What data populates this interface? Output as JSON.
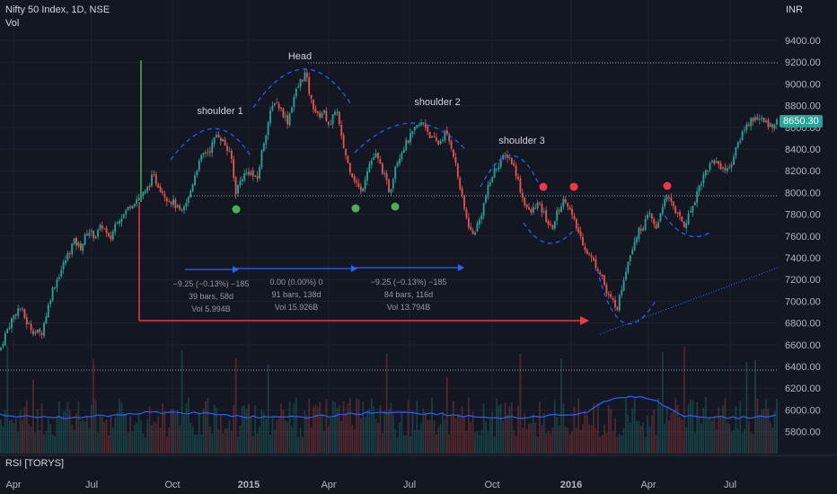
{
  "header": {
    "symbol": "Nifty 50 Index, 1D, NSE",
    "vol_label": "Vol",
    "currency": "INR",
    "rsi_label": "RSI [TORYS]"
  },
  "colors": {
    "background": "#131722",
    "up": "#26a69a",
    "down": "#ef5350",
    "wave": "#2962ff",
    "markerRed": "#f23645",
    "markerGreen": "#4caf50",
    "vLine": "#4caf50",
    "hArrow": "#f23645",
    "volLine": "#2962ff"
  },
  "price_tag": "8650.30",
  "annotations": {
    "head": "Head",
    "shoulder1": "shoulder 1",
    "shoulder2": "shoulder 2",
    "shoulder3": "shoulder 3",
    "m1_line1": "−9.25 (−0.13%) −185",
    "m1_line2": "39 bars, 58d",
    "m1_line3": "Vol 5.994B",
    "m2_line1": "0.00 (0.00%) 0",
    "m2_line2": "91 bars, 138d",
    "m2_line3": "Vol 15.926B",
    "m3_line1": "−9.25 (−0.13%) −185",
    "m3_line2": "84 bars, 116d",
    "m3_line3": "Vol 13.794B"
  },
  "chart_data": {
    "type": "candlestick",
    "y_axis_ticks": [
      "9400.00",
      "9200.00",
      "9000.00",
      "8800.00",
      "8600.00",
      "8400.00",
      "8200.00",
      "8000.00",
      "7800.00",
      "7600.00",
      "7400.00",
      "7200.00",
      "7000.00",
      "6800.00",
      "6600.00",
      "6400.00",
      "6200.00",
      "6000.00",
      "5800.00"
    ],
    "x_axis_ticks": [
      "Apr",
      "Jul",
      "Oct",
      "2015",
      "Apr",
      "Jul",
      "Oct",
      "2016",
      "Apr",
      "Jul"
    ],
    "ylim": [
      5700,
      9550
    ],
    "key_levels": {
      "neckline": 7980,
      "head_high": 9200,
      "support": 6380
    },
    "path": [
      [
        0,
        6550
      ],
      [
        6,
        6700
      ],
      [
        14,
        6850
      ],
      [
        22,
        6950
      ],
      [
        30,
        6800
      ],
      [
        38,
        6720
      ],
      [
        46,
        6700
      ],
      [
        52,
        6900
      ],
      [
        58,
        7100
      ],
      [
        66,
        7250
      ],
      [
        74,
        7400
      ],
      [
        82,
        7550
      ],
      [
        90,
        7500
      ],
      [
        98,
        7650
      ],
      [
        106,
        7600
      ],
      [
        114,
        7700
      ],
      [
        122,
        7550
      ],
      [
        130,
        7750
      ],
      [
        138,
        7800
      ],
      [
        146,
        7900
      ],
      [
        154,
        7950
      ],
      [
        162,
        8000
      ],
      [
        170,
        8150
      ],
      [
        178,
        8050
      ],
      [
        186,
        7950
      ],
      [
        194,
        7900
      ],
      [
        202,
        7800
      ],
      [
        210,
        7950
      ],
      [
        218,
        8200
      ],
      [
        226,
        8350
      ],
      [
        234,
        8400
      ],
      [
        242,
        8550
      ],
      [
        250,
        8450
      ],
      [
        258,
        8300
      ],
      [
        262,
        8000
      ],
      [
        270,
        8150
      ],
      [
        278,
        8200
      ],
      [
        286,
        8100
      ],
      [
        292,
        8400
      ],
      [
        300,
        8700
      ],
      [
        306,
        8850
      ],
      [
        314,
        8750
      ],
      [
        320,
        8650
      ],
      [
        328,
        8900
      ],
      [
        336,
        9050
      ],
      [
        340,
        9100
      ],
      [
        346,
        8850
      ],
      [
        354,
        8700
      ],
      [
        360,
        8750
      ],
      [
        368,
        8600
      ],
      [
        374,
        8800
      ],
      [
        380,
        8500
      ],
      [
        388,
        8250
      ],
      [
        396,
        8100
      ],
      [
        402,
        8000
      ],
      [
        410,
        8250
      ],
      [
        418,
        8350
      ],
      [
        426,
        8200
      ],
      [
        434,
        8000
      ],
      [
        440,
        8250
      ],
      [
        448,
        8400
      ],
      [
        456,
        8500
      ],
      [
        464,
        8600
      ],
      [
        472,
        8650
      ],
      [
        480,
        8500
      ],
      [
        488,
        8450
      ],
      [
        496,
        8550
      ],
      [
        504,
        8400
      ],
      [
        512,
        8050
      ],
      [
        518,
        7800
      ],
      [
        526,
        7600
      ],
      [
        534,
        7750
      ],
      [
        542,
        8000
      ],
      [
        550,
        8200
      ],
      [
        558,
        8300
      ],
      [
        566,
        8350
      ],
      [
        574,
        8200
      ],
      [
        582,
        7950
      ],
      [
        590,
        7800
      ],
      [
        598,
        7900
      ],
      [
        606,
        7800
      ],
      [
        614,
        7650
      ],
      [
        622,
        7850
      ],
      [
        630,
        7950
      ],
      [
        638,
        7750
      ],
      [
        646,
        7600
      ],
      [
        654,
        7450
      ],
      [
        662,
        7350
      ],
      [
        670,
        7250
      ],
      [
        676,
        7050
      ],
      [
        682,
        7000
      ],
      [
        688,
        6950
      ],
      [
        694,
        7200
      ],
      [
        700,
        7400
      ],
      [
        708,
        7600
      ],
      [
        716,
        7700
      ],
      [
        724,
        7800
      ],
      [
        730,
        7650
      ],
      [
        738,
        7900
      ],
      [
        746,
        7950
      ],
      [
        754,
        7800
      ],
      [
        762,
        7700
      ],
      [
        770,
        7850
      ],
      [
        778,
        8050
      ],
      [
        786,
        8200
      ],
      [
        794,
        8300
      ],
      [
        802,
        8250
      ],
      [
        810,
        8200
      ],
      [
        818,
        8350
      ],
      [
        826,
        8550
      ],
      [
        834,
        8650
      ],
      [
        842,
        8700
      ],
      [
        850,
        8650
      ],
      [
        858,
        8620
      ],
      [
        866,
        8650
      ]
    ]
  }
}
